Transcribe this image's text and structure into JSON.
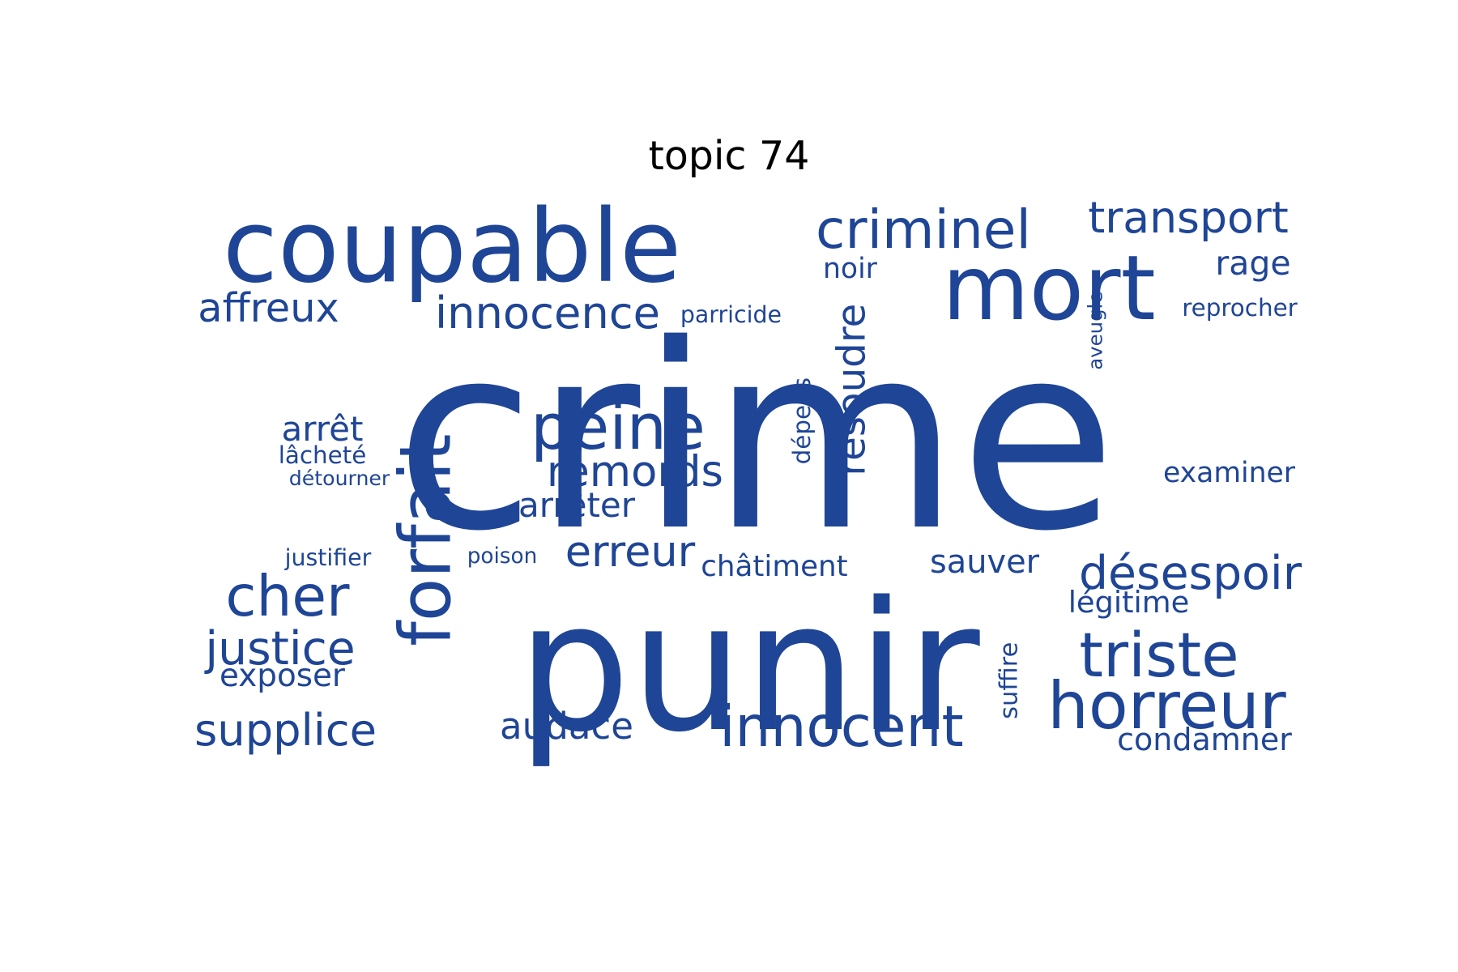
{
  "title": "topic 74",
  "color": "#1f4596",
  "words": [
    "crime",
    "punir",
    "coupable",
    "mort",
    "criminel",
    "transport",
    "rage",
    "noir",
    "affreux",
    "innocence",
    "parricide",
    "reprocher",
    "aveugle",
    "forfait",
    "peine",
    "résoudre",
    "dépens",
    "arrêt",
    "lâcheté",
    "détourner",
    "remords",
    "arrêter",
    "examiner",
    "justifier",
    "poison",
    "erreur",
    "châtiment",
    "sauver",
    "désespoir",
    "cher",
    "légitime",
    "justice",
    "exposer",
    "triste",
    "suffire",
    "horreur",
    "supplice",
    "audace",
    "innocent",
    "condamner"
  ]
}
